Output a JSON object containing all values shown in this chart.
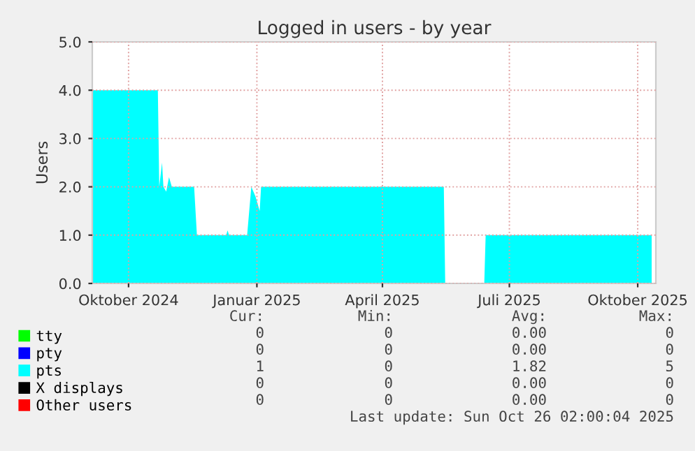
{
  "chart_data": {
    "type": "area",
    "title": "Logged in users - by year",
    "ylabel": "Users",
    "xlim": [
      "2024-09-05",
      "2025-10-14"
    ],
    "xticks": [
      {
        "value": "2024-10-01",
        "label": "Oktober 2024"
      },
      {
        "value": "2025-01-01",
        "label": "Januar 2025"
      },
      {
        "value": "2025-04-01",
        "label": "April 2025"
      },
      {
        "value": "2025-07-01",
        "label": "Juli 2025"
      },
      {
        "value": "2025-10-01",
        "label": "Oktober 2025"
      }
    ],
    "ylim": [
      0,
      5
    ],
    "yticks": [
      {
        "value": 0,
        "label": "0.0"
      },
      {
        "value": 1,
        "label": "1.0"
      },
      {
        "value": 2,
        "label": "2.0"
      },
      {
        "value": 3,
        "label": "3.0"
      },
      {
        "value": 4,
        "label": "4.0"
      },
      {
        "value": 5,
        "label": "5.0"
      }
    ],
    "grid": true,
    "legend": "bottom left",
    "series": [
      {
        "name": "tty",
        "color": "#00ff00"
      },
      {
        "name": "pty",
        "color": "#0000ff"
      },
      {
        "name": "pts",
        "color": "#00ffff",
        "x": [
          "2024-09-05",
          "2024-09-20",
          "2024-10-22",
          "2024-10-23",
          "2024-10-25",
          "2024-10-26",
          "2024-10-28",
          "2024-10-30",
          "2024-11-01",
          "2024-11-17",
          "2024-11-19",
          "2024-12-10",
          "2024-12-11",
          "2024-12-12",
          "2024-12-25",
          "2024-12-28",
          "2024-12-31",
          "2025-01-03",
          "2025-01-04",
          "2025-03-15",
          "2025-05-15",
          "2025-05-16",
          "2025-06-13",
          "2025-06-14",
          "2025-08-01",
          "2025-10-11"
        ],
        "values": [
          4.0,
          4.0,
          4.0,
          2.0,
          2.5,
          2.0,
          1.9,
          2.2,
          2.0,
          2.0,
          1.0,
          1.0,
          1.1,
          1.0,
          1.0,
          2.0,
          1.8,
          1.5,
          2.0,
          2.0,
          2.0,
          0,
          0,
          1.0,
          1.0,
          1.0
        ]
      },
      {
        "name": "X displays",
        "color": "#000000"
      },
      {
        "name": "Other users",
        "color": "#ff0000"
      }
    ],
    "annotations": [
      "Cur:",
      "Min:",
      "Avg:",
      "Max:",
      "0",
      "0",
      "0.00",
      "0",
      "0",
      "0",
      "0.00",
      "0",
      "1",
      "0",
      "1.82",
      "5",
      "0",
      "0",
      "0.00",
      "0",
      "0",
      "0",
      "0.00",
      "0",
      "Last update: Sun Oct 26 02:00:04 2025"
    ]
  }
}
